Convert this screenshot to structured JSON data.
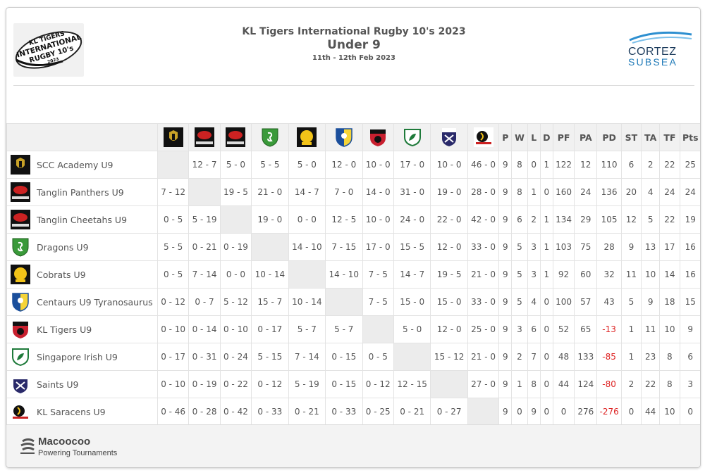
{
  "header": {
    "title": "KL Tigers International Rugby 10's 2023",
    "subtitle": "Under 9",
    "dates": "11th - 12th Feb 2023",
    "logo_text": [
      "KL TIGERS",
      "INTERNATIONAL",
      "RUGBY 10's",
      "2023"
    ],
    "sponsor": {
      "line1": "CORTEZ",
      "line2": "SUBSEA"
    }
  },
  "table": {
    "stat_headers": [
      "P",
      "W",
      "L",
      "D",
      "PF",
      "PA",
      "PD",
      "ST",
      "TA",
      "TF",
      "Pts"
    ],
    "rows": [
      {
        "team": "SCC Academy U9",
        "logo": "scc-academy-icon",
        "results": [
          "",
          "12 - 7",
          "5 - 0",
          "5 - 5",
          "5 - 0",
          "12 - 0",
          "10 - 0",
          "17 - 0",
          "10 - 0",
          "46 - 0"
        ],
        "stats": [
          "9",
          "8",
          "0",
          "1",
          "122",
          "12",
          "110",
          "6",
          "2",
          "22",
          "25"
        ]
      },
      {
        "team": "Tanglin Panthers U9",
        "logo": "tanglin-icon",
        "results": [
          "7 - 12",
          "",
          "19 - 5",
          "21 - 0",
          "14 - 7",
          "7 - 0",
          "14 - 0",
          "31 - 0",
          "19 - 0",
          "28 - 0"
        ],
        "stats": [
          "9",
          "8",
          "1",
          "0",
          "160",
          "24",
          "136",
          "20",
          "4",
          "24",
          "24"
        ]
      },
      {
        "team": "Tanglin Cheetahs U9",
        "logo": "tanglin-icon",
        "results": [
          "0 - 5",
          "5 - 19",
          "",
          "19 - 0",
          "0 - 0",
          "12 - 5",
          "10 - 0",
          "24 - 0",
          "22 - 0",
          "42 - 0"
        ],
        "stats": [
          "9",
          "6",
          "2",
          "1",
          "134",
          "29",
          "105",
          "12",
          "5",
          "22",
          "19"
        ]
      },
      {
        "team": "Dragons U9",
        "logo": "dragons-icon",
        "results": [
          "5 - 5",
          "0 - 21",
          "0 - 19",
          "",
          "14 - 10",
          "7 - 15",
          "17 - 0",
          "15 - 5",
          "12 - 0",
          "33 - 0"
        ],
        "stats": [
          "9",
          "5",
          "3",
          "1",
          "103",
          "75",
          "28",
          "9",
          "13",
          "17",
          "16"
        ]
      },
      {
        "team": "Cobrats U9",
        "logo": "cobrats-icon",
        "results": [
          "0 - 5",
          "7 - 14",
          "0 - 0",
          "10 - 14",
          "",
          "14 - 10",
          "7 - 5",
          "14 - 7",
          "19 - 5",
          "21 - 0"
        ],
        "stats": [
          "9",
          "5",
          "3",
          "1",
          "92",
          "60",
          "32",
          "11",
          "10",
          "14",
          "16"
        ]
      },
      {
        "team": "Centaurs U9 Tyranosaurus",
        "logo": "centaurs-icon",
        "results": [
          "0 - 12",
          "0 - 7",
          "5 - 12",
          "15 - 7",
          "10 - 14",
          "",
          "7 - 5",
          "15 - 0",
          "15 - 0",
          "33 - 0"
        ],
        "stats": [
          "9",
          "5",
          "4",
          "0",
          "100",
          "57",
          "43",
          "5",
          "9",
          "18",
          "15"
        ]
      },
      {
        "team": "KL Tigers U9",
        "logo": "kl-tigers-icon",
        "results": [
          "0 - 10",
          "0 - 14",
          "0 - 10",
          "0 - 17",
          "5 - 7",
          "5 - 7",
          "",
          "5 - 0",
          "12 - 0",
          "25 - 0"
        ],
        "stats": [
          "9",
          "3",
          "6",
          "0",
          "52",
          "65",
          "-13",
          "1",
          "11",
          "10",
          "9"
        ]
      },
      {
        "team": "Singapore Irish U9",
        "logo": "singapore-irish-icon",
        "results": [
          "0 - 17",
          "0 - 31",
          "0 - 24",
          "5 - 15",
          "7 - 14",
          "0 - 15",
          "0 - 5",
          "",
          "15 - 12",
          "21 - 0"
        ],
        "stats": [
          "9",
          "2",
          "7",
          "0",
          "48",
          "133",
          "-85",
          "1",
          "23",
          "8",
          "6"
        ]
      },
      {
        "team": "Saints U9",
        "logo": "saints-icon",
        "results": [
          "0 - 10",
          "0 - 19",
          "0 - 22",
          "0 - 12",
          "5 - 19",
          "0 - 15",
          "0 - 12",
          "12 - 15",
          "",
          "27 - 0"
        ],
        "stats": [
          "9",
          "1",
          "8",
          "0",
          "44",
          "124",
          "-80",
          "2",
          "22",
          "8",
          "3"
        ]
      },
      {
        "team": "KL Saracens U9",
        "logo": "kl-saracens-icon",
        "results": [
          "0 - 46",
          "0 - 28",
          "0 - 42",
          "0 - 33",
          "0 - 21",
          "0 - 33",
          "0 - 25",
          "0 - 21",
          "0 - 27",
          ""
        ],
        "stats": [
          "9",
          "0",
          "9",
          "0",
          "0",
          "276",
          "-276",
          "0",
          "44",
          "10",
          "0"
        ]
      }
    ]
  },
  "colors": {
    "negative": "#dd2222",
    "blank_cell": "#ececec",
    "header_bg": "#f1f1f1"
  },
  "footer": {
    "brand": "Macoocoo",
    "tagline": "Powering Tournaments"
  }
}
